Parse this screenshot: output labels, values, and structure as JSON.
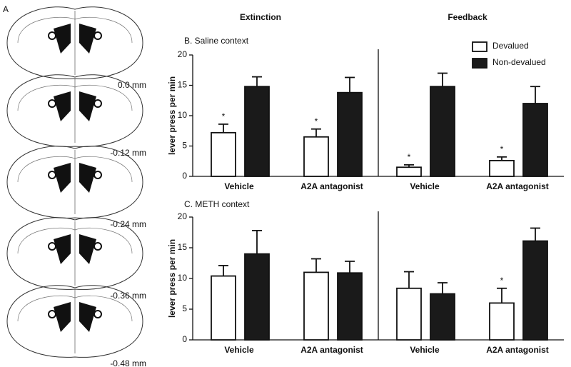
{
  "atlas": {
    "label": "A",
    "levels": [
      "0.0 mm",
      "-0.12 mm",
      "-0.24 mm",
      "-0.36 mm",
      "-0.48 mm"
    ]
  },
  "groups": [
    "Extinction",
    "Feedback"
  ],
  "chart_data": [
    {
      "type": "bar",
      "title": "B. Saline context",
      "y_label": "lever press per min",
      "categories": [
        "Vehicle",
        "A2A antagonist",
        "Vehicle",
        "A2A antagonist"
      ],
      "series": [
        {
          "name": "Devalued",
          "color": "#ffffff",
          "values": [
            7.2,
            6.5,
            1.5,
            2.6
          ],
          "errors": [
            1.4,
            1.3,
            0.4,
            0.6
          ],
          "annotations": [
            "*",
            "*",
            "*",
            "*"
          ]
        },
        {
          "name": "Non-devalued",
          "color": "#1a1a1a",
          "values": [
            14.8,
            13.8,
            14.8,
            12.0
          ],
          "errors": [
            1.6,
            2.5,
            2.2,
            2.8
          ]
        }
      ],
      "ylim": [
        0,
        20
      ],
      "yticks": [
        0,
        5,
        10,
        15,
        20
      ],
      "legend": "top-right"
    },
    {
      "type": "bar",
      "title": "C. METH context",
      "y_label": "lever press per min",
      "categories": [
        "Vehicle",
        "A2A antagonist",
        "Vehicle",
        "A2A antagonist"
      ],
      "series": [
        {
          "color": "#ffffff",
          "values": [
            10.4,
            11.0,
            8.4,
            6.0
          ],
          "errors": [
            1.7,
            2.2,
            2.7,
            2.4
          ],
          "annotations": [
            null,
            null,
            null,
            "*"
          ]
        },
        {
          "color": "#1a1a1a",
          "values": [
            14.0,
            10.9,
            7.5,
            16.1
          ],
          "errors": [
            3.8,
            1.9,
            1.8,
            2.1
          ]
        }
      ],
      "ylim": [
        0,
        20
      ],
      "yticks": [
        0,
        5,
        10,
        15,
        20
      ]
    }
  ]
}
